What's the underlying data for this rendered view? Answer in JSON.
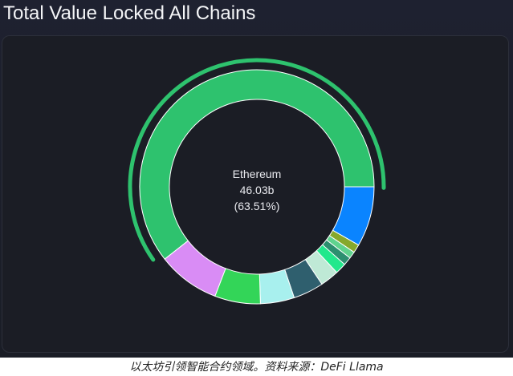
{
  "title": "Total Value Locked All Chains",
  "caption": "以太坊引领智能合约领域。资料来源：DeFi Llama",
  "chart_data": {
    "type": "pie",
    "title": "Total Value Locked All Chains",
    "highlight": {
      "name": "Ethereum",
      "value_label": "46.03b",
      "percent_label": "(63.51%)"
    },
    "slices": [
      {
        "name": "Ethereum",
        "percent": 63.51,
        "color": "#2ec26e"
      },
      {
        "name": "",
        "percent": 8.7,
        "color": "#0a84ff"
      },
      {
        "name": "",
        "percent": 1.2,
        "color": "#86a82c"
      },
      {
        "name": "",
        "percent": 1.0,
        "color": "#5fd38e"
      },
      {
        "name": "",
        "percent": 1.2,
        "color": "#2c8f6f"
      },
      {
        "name": "",
        "percent": 1.6,
        "color": "#22e88c"
      },
      {
        "name": "",
        "percent": 2.7,
        "color": "#bfe9d6"
      },
      {
        "name": "",
        "percent": 4.4,
        "color": "#2f5f6e"
      },
      {
        "name": "",
        "percent": 4.9,
        "color": "#a8f0ee"
      },
      {
        "name": "",
        "percent": 6.6,
        "color": "#33d558"
      },
      {
        "name": "",
        "percent": 9.0,
        "color": "#d98cf5"
      }
    ]
  }
}
